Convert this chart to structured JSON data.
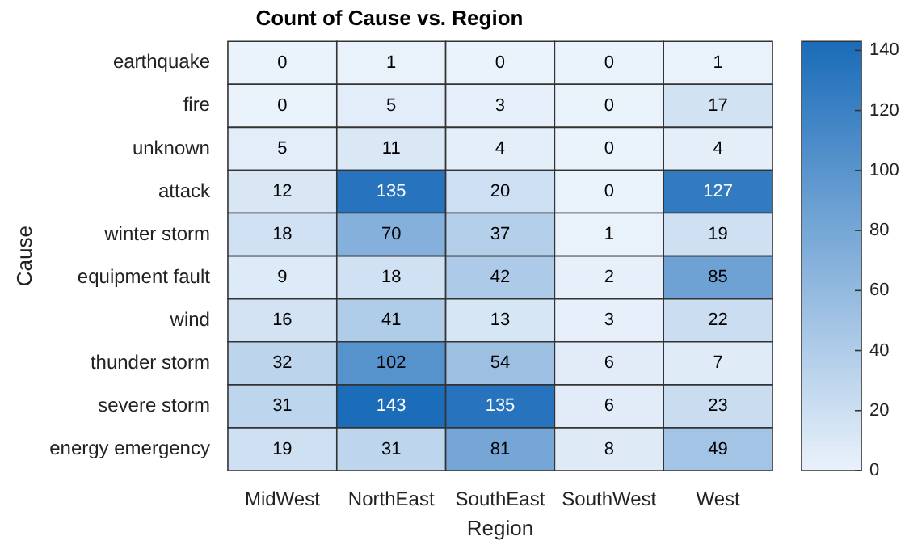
{
  "chart_data": {
    "type": "heatmap",
    "title": "Count of Cause vs. Region",
    "xlabel": "Region",
    "ylabel": "Cause",
    "categories": [
      "MidWest",
      "NorthEast",
      "SouthEast",
      "SouthWest",
      "West"
    ],
    "y_categories": [
      "earthquake",
      "fire",
      "unknown",
      "attack",
      "winter storm",
      "equipment fault",
      "wind",
      "thunder storm",
      "severe storm",
      "energy emergency"
    ],
    "cells": [
      [
        0,
        1,
        0,
        0,
        1
      ],
      [
        0,
        5,
        3,
        0,
        17
      ],
      [
        5,
        11,
        4,
        0,
        4
      ],
      [
        12,
        135,
        20,
        0,
        127
      ],
      [
        18,
        70,
        37,
        1,
        19
      ],
      [
        9,
        18,
        42,
        2,
        85
      ],
      [
        16,
        41,
        13,
        3,
        22
      ],
      [
        32,
        102,
        54,
        6,
        7
      ],
      [
        31,
        143,
        135,
        6,
        23
      ],
      [
        19,
        31,
        81,
        8,
        49
      ]
    ],
    "clim": [
      0,
      143
    ],
    "cticks": [
      0,
      20,
      40,
      60,
      80,
      100,
      120,
      140
    ],
    "data_labels": true
  }
}
